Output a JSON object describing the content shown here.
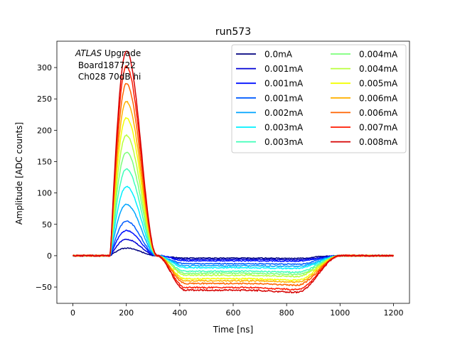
{
  "chart_data": {
    "type": "line",
    "title": "run573",
    "xlabel": "Time [ns]",
    "ylabel": "Amplitude [ADC counts]",
    "xlim": [
      -60,
      1260
    ],
    "ylim": [
      -76,
      342
    ],
    "xticks": [
      0,
      200,
      400,
      600,
      800,
      1000,
      1200
    ],
    "yticks": [
      -50,
      0,
      50,
      100,
      150,
      200,
      250,
      300
    ],
    "grid": false,
    "legend_position": "top-right",
    "legend_columns": 2,
    "annotation": {
      "line1_italic": "ATLAS",
      "line1_rest": " Upgrade",
      "line2": " Board187722",
      "line3": " Ch028 70dB hi"
    },
    "series": [
      {
        "name": "0.0mA",
        "color": "#00007f",
        "peak": 12,
        "undershoot": -3
      },
      {
        "name": "0.001mA",
        "color": "#0000d6",
        "peak": 26,
        "undershoot": -6
      },
      {
        "name": "0.001mA",
        "color": "#0010ff",
        "peak": 40,
        "undershoot": -9
      },
      {
        "name": "0.001mA",
        "color": "#005cff",
        "peak": 55,
        "undershoot": -12
      },
      {
        "name": "0.002mA",
        "color": "#00a4ff",
        "peak": 82,
        "undershoot": -16
      },
      {
        "name": "0.003mA",
        "color": "#00f0ff",
        "peak": 110,
        "undershoot": -20
      },
      {
        "name": "0.003mA",
        "color": "#3effb8",
        "peak": 138,
        "undershoot": -24
      },
      {
        "name": "0.004mA",
        "color": "#7cff79",
        "peak": 165,
        "undershoot": -28
      },
      {
        "name": "0.004mA",
        "color": "#b9ff3c",
        "peak": 192,
        "undershoot": -32
      },
      {
        "name": "0.005mA",
        "color": "#f3ff00",
        "peak": 220,
        "undershoot": -36
      },
      {
        "name": "0.006mA",
        "color": "#ffb100",
        "peak": 246,
        "undershoot": -40
      },
      {
        "name": "0.006mA",
        "color": "#ff6300",
        "peak": 274,
        "undershoot": -45
      },
      {
        "name": "0.007mA",
        "color": "#ff1900",
        "peak": 302,
        "undershoot": -50
      },
      {
        "name": "0.008mA",
        "color": "#d60000",
        "peak": 326,
        "undershoot": -55
      }
    ]
  }
}
